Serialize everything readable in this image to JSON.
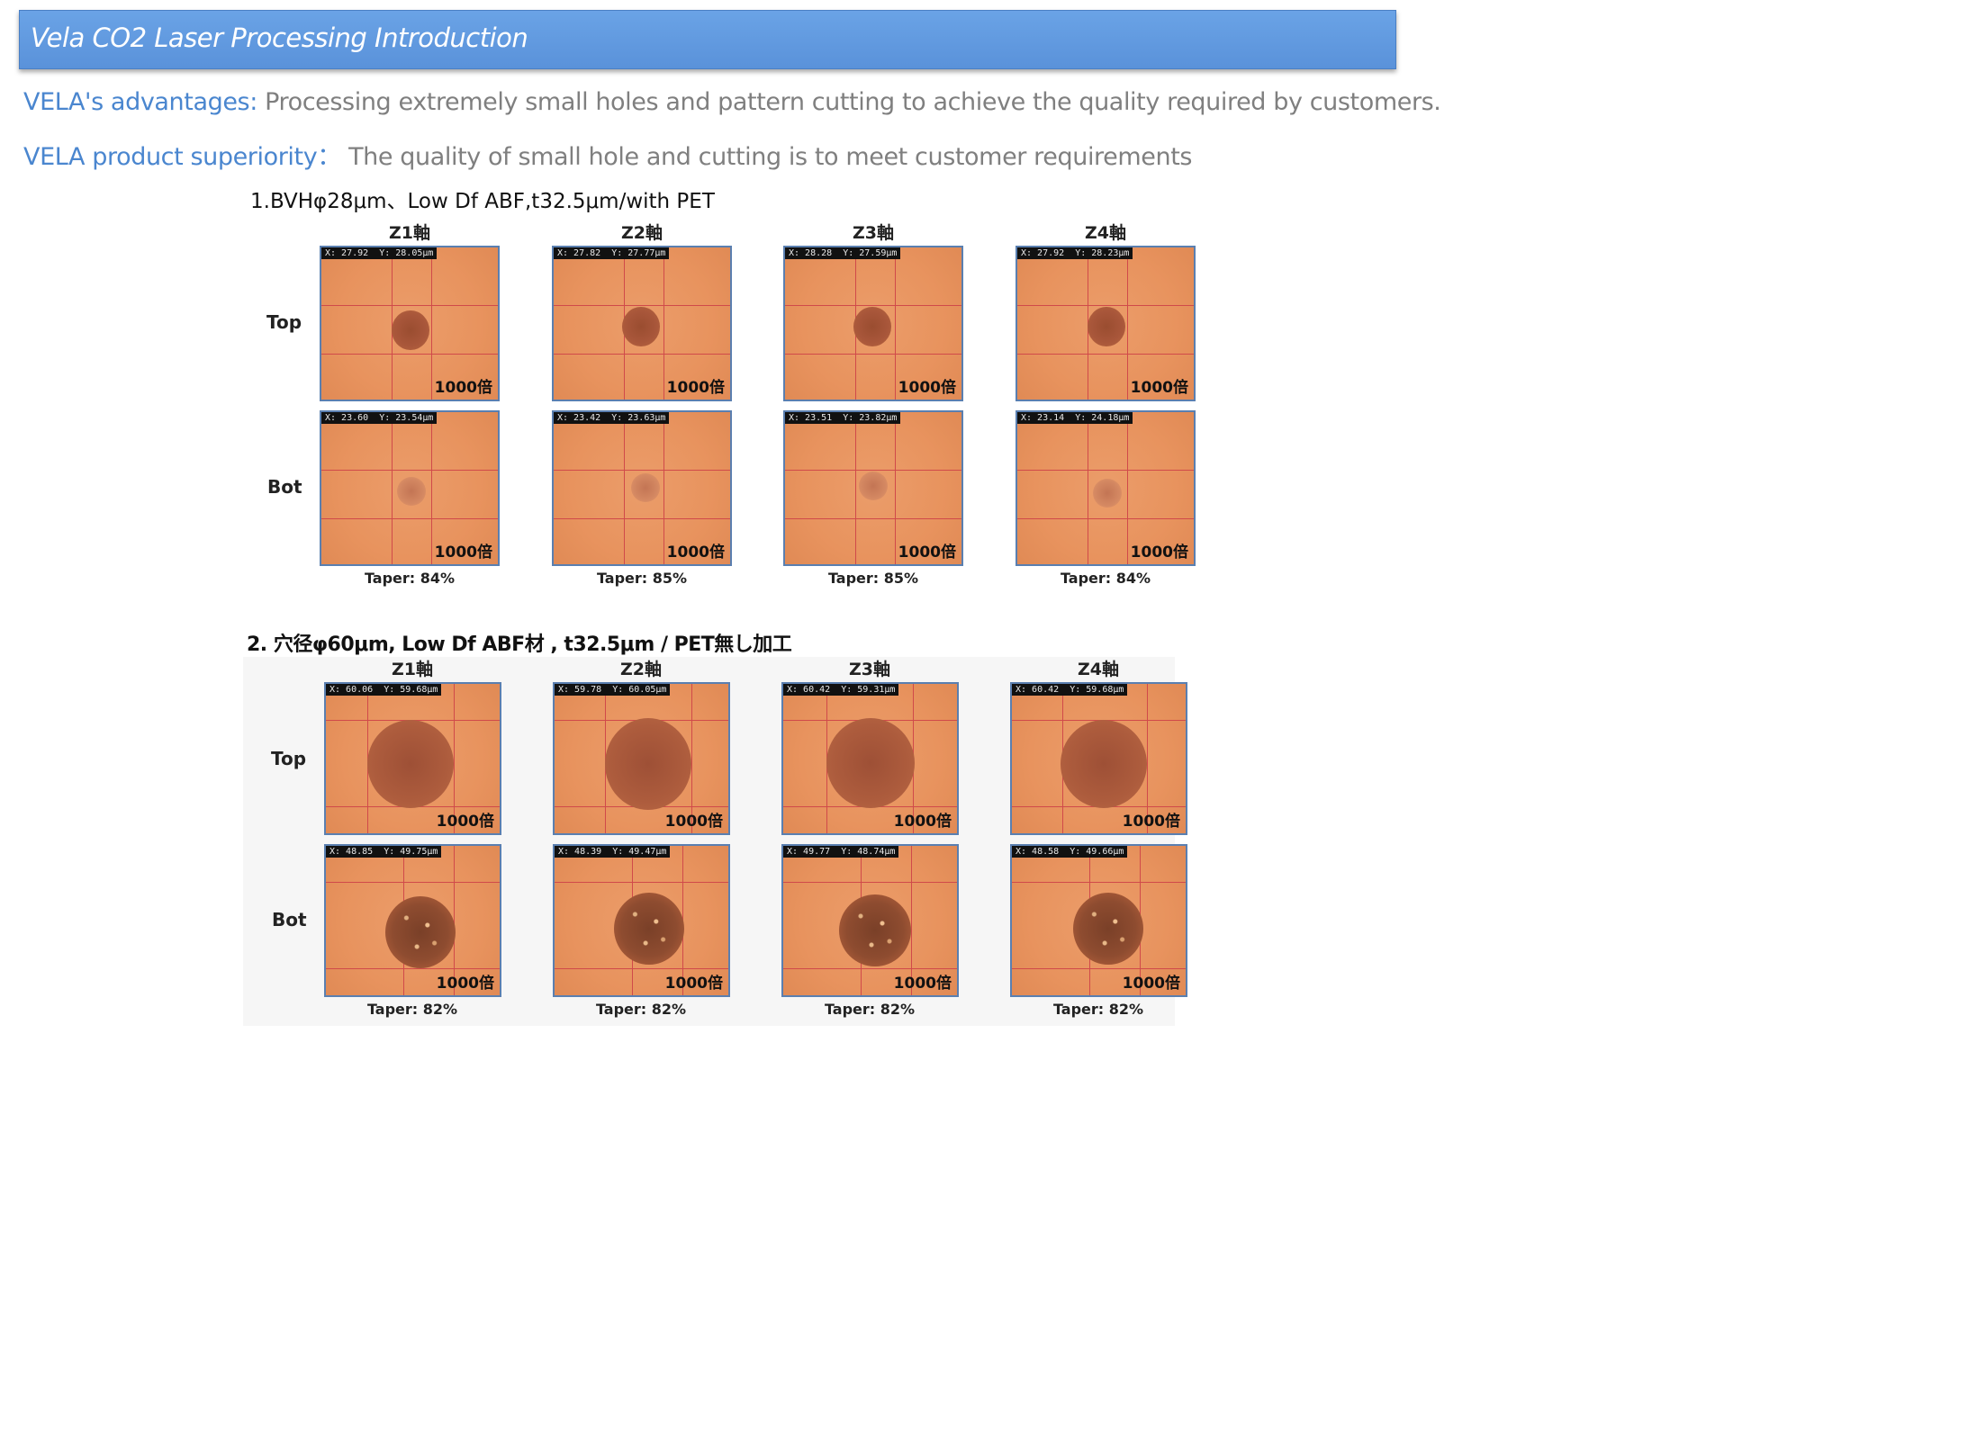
{
  "header": {
    "title": "Vela CO2 Laser  Processing Introduction"
  },
  "intro": {
    "advantages_key": "VELA's advantages:",
    "advantages_value": "Processing extremely small holes and pattern cutting to achieve the quality required by customers.",
    "superiority_key": "VELA product superiority：",
    "superiority_value": "The quality of small hole and cutting is to meet customer requirements"
  },
  "section1": {
    "title": "1.BVHφ28μm、Low Df ABF,t32.5μm/with PET",
    "axes": [
      "Z1軸",
      "Z2軸",
      "Z3軸",
      "Z4軸"
    ],
    "row_top": "Top",
    "row_bot": "Bot",
    "magnification": "1000倍",
    "top_measurements": [
      "X: 27.92  Y: 28.05μm",
      "X: 27.82  Y: 27.77μm",
      "X: 28.28  Y: 27.59μm",
      "X: 27.92  Y: 28.23μm"
    ],
    "bot_measurements": [
      "X: 23.60  Y: 23.54μm",
      "X: 23.42  Y: 23.63μm",
      "X: 23.51  Y: 23.82μm",
      "X: 23.14  Y: 24.18μm"
    ],
    "tapers": [
      "Taper: 84%",
      "Taper: 85%",
      "Taper: 85%",
      "Taper: 84%"
    ]
  },
  "section2": {
    "title": "2.  穴径φ60μm, Low Df ABF材 , t32.5μm / PET無し加工",
    "axes": [
      "Z1軸",
      "Z2軸",
      "Z3軸",
      "Z4軸"
    ],
    "row_top": "Top",
    "row_bot": "Bot",
    "magnification": "1000倍",
    "top_measurements": [
      "X: 60.06  Y: 59.68μm",
      "X: 59.78  Y: 60.05μm",
      "X: 60.42  Y: 59.31μm",
      "X: 60.42  Y: 59.68μm"
    ],
    "bot_measurements": [
      "X: 48.85  Y: 49.75μm",
      "X: 48.39  Y: 49.47μm",
      "X: 49.77  Y: 48.74μm",
      "X: 48.58  Y: 49.66μm"
    ],
    "tapers": [
      "Taper: 82%",
      "Taper: 82%",
      "Taper: 82%",
      "Taper: 82%"
    ]
  }
}
